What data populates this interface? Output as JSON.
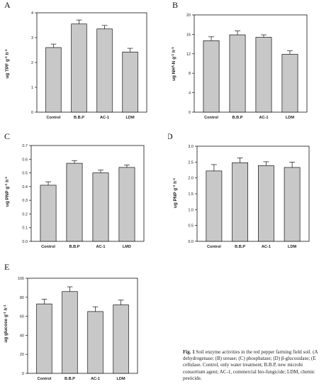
{
  "panels": [
    {
      "label": "A",
      "type": "bar",
      "ylabel_parts": [
        "ug TPF g",
        "-1",
        " h",
        "-1"
      ],
      "ylim": [
        0,
        4
      ],
      "yticks": [
        "0",
        "1",
        "2",
        "3",
        "4"
      ],
      "categories": [
        "Control",
        "B.B.P",
        "AC-1",
        "LDM"
      ],
      "values": [
        2.6,
        3.55,
        3.35,
        2.42
      ],
      "errors": [
        0.14,
        0.16,
        0.14,
        0.15
      ]
    },
    {
      "label": "B",
      "type": "bar",
      "ylabel_parts": [
        "ug NH",
        "4",
        "-N g",
        "-1",
        " h",
        "-1"
      ],
      "ylim": [
        0,
        20
      ],
      "yticks": [
        "0",
        "4",
        "8",
        "12",
        "16",
        "20"
      ],
      "categories": [
        "Control",
        "B.B.P",
        "AC-1",
        "LDM"
      ],
      "values": [
        14.7,
        15.9,
        15.4,
        11.9
      ],
      "errors": [
        0.8,
        0.8,
        0.5,
        0.7
      ]
    },
    {
      "label": "C",
      "type": "bar",
      "ylabel_parts": [
        "ug PNP g",
        "-1",
        " h",
        "-1"
      ],
      "ylim": [
        0,
        0.7
      ],
      "yticks": [
        "0.0",
        "0.1",
        "0.2",
        "0.3",
        "0.4",
        "0.5",
        "0.6",
        "0.7"
      ],
      "categories": [
        "Control",
        "B.B.P",
        "AC-1",
        "LMD"
      ],
      "values": [
        0.41,
        0.57,
        0.5,
        0.54
      ],
      "errors": [
        0.025,
        0.02,
        0.02,
        0.018
      ]
    },
    {
      "label": "D",
      "type": "bar",
      "ylabel_parts": [
        "ug PNP g",
        "-1",
        " h",
        "-1"
      ],
      "ylim": [
        0,
        3.0
      ],
      "yticks": [
        "0.0",
        "0.5",
        "1.0",
        "1.5",
        "2.0",
        "2.5",
        "3.0"
      ],
      "categories": [
        "Control",
        "B.B.P",
        "AC-1",
        "LDM"
      ],
      "values": [
        2.22,
        2.48,
        2.39,
        2.33
      ],
      "errors": [
        0.2,
        0.15,
        0.12,
        0.17
      ]
    },
    {
      "label": "E",
      "type": "bar",
      "ylabel_parts": [
        "ug glucose g",
        "-1",
        " h",
        "-1"
      ],
      "ylim": [
        0,
        100
      ],
      "yticks": [
        "0",
        "20",
        "40",
        "60",
        "80",
        "100"
      ],
      "categories": [
        "Control",
        "B.B.P",
        "AC-1",
        "LDM"
      ],
      "values": [
        73,
        86,
        65,
        72
      ],
      "errors": [
        5,
        5,
        5,
        5
      ]
    }
  ],
  "caption": {
    "fig_label": "Fig. 1",
    "lines": [
      "Soil enzyme activities in the red pepper farming field soil. (A",
      "dehydrogenase; (B) urease; (C) phosphatase; (D) β-glucosidase; (E",
      "cellulase. Control, only water treatment; B.B.P, new microbi",
      "consortium agent; AC-1, commercial bio-fungicide; LDM, chemic",
      "pesticide."
    ]
  },
  "colors": {
    "bar_fill": "#c8c8c8",
    "bar_stroke": "#111111",
    "axis": "#111111"
  }
}
